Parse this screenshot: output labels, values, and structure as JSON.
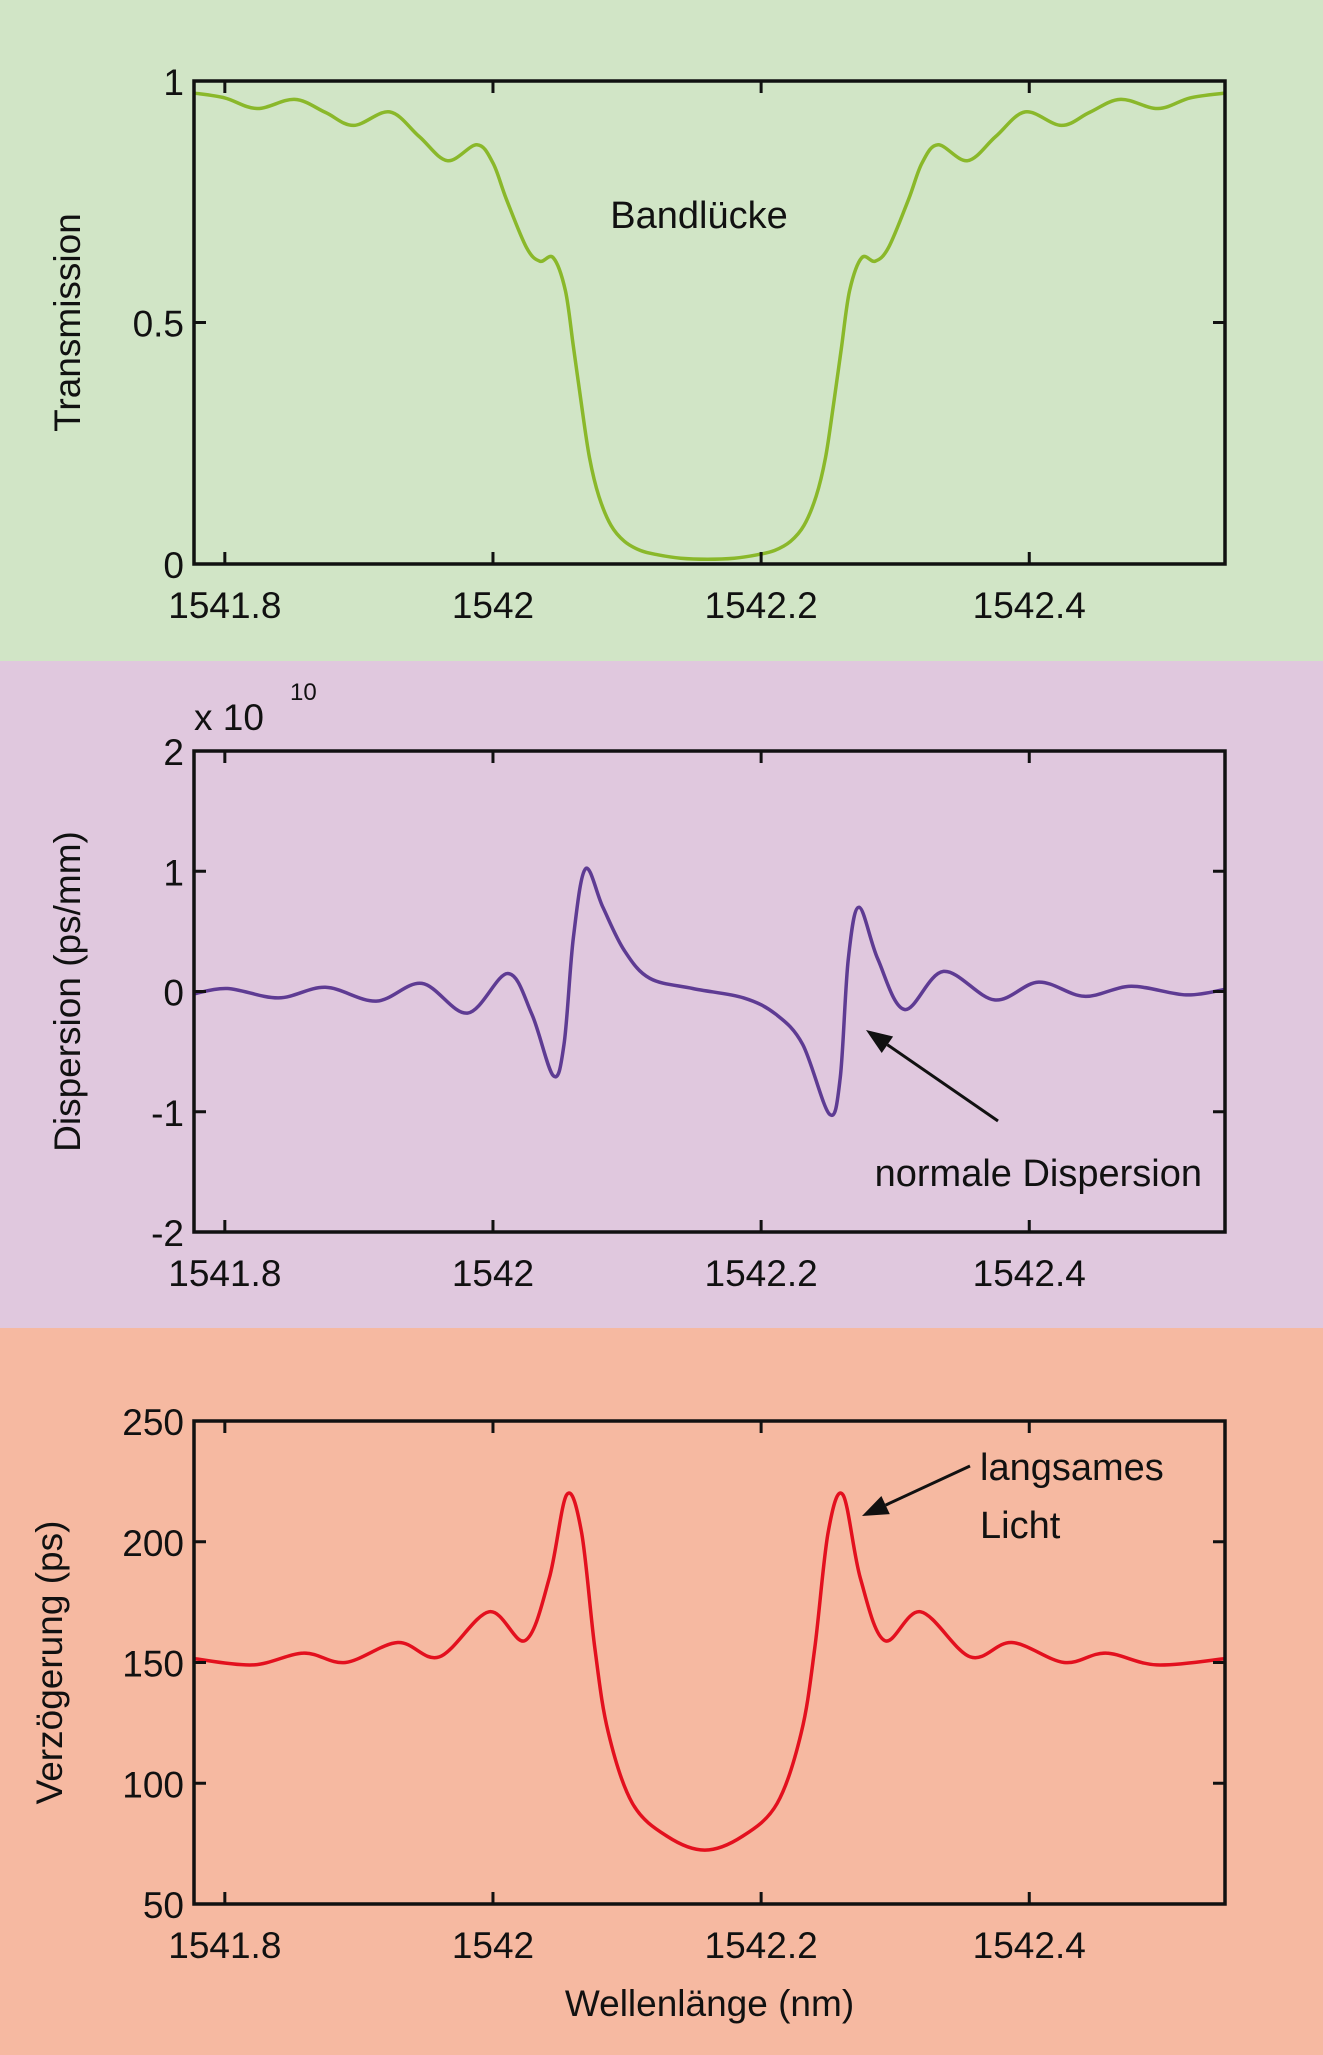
{
  "colors": {
    "transmission_bg": "#d1e5c6",
    "dispersion_bg": "#e0c8de",
    "delay_bg": "#f6b9a1",
    "transmission_line": "#8ab82a",
    "dispersion_line": "#5e3b93",
    "delay_line": "#e3101e",
    "axis": "#111111"
  },
  "chart_data": [
    {
      "type": "line",
      "ylabel": "Transmission",
      "xlabel": "",
      "xlim": [
        1541.777,
        1542.546
      ],
      "ylim": [
        0,
        1
      ],
      "xticks": [
        1541.8,
        1542.0,
        1542.2,
        1542.4
      ],
      "xtick_labels": [
        "1541.8",
        "1542",
        "1542.2",
        "1542.4"
      ],
      "yticks": [
        0,
        0.5,
        1
      ],
      "ytick_labels": [
        "0",
        "0.5",
        "1"
      ],
      "annotations": [
        {
          "text": "Bandlücke"
        }
      ],
      "x": [
        1541.777,
        1541.8,
        1541.824,
        1541.852,
        1541.875,
        1541.896,
        1541.923,
        1541.945,
        1541.966,
        1541.988,
        1542.0,
        1542.01,
        1542.025,
        1542.035,
        1542.045,
        1542.054,
        1542.06,
        1542.066,
        1542.072,
        1542.079,
        1542.088,
        1542.098,
        1542.11,
        1542.123,
        1542.14,
        1542.16,
        1542.18,
        1542.197,
        1542.21,
        1542.222,
        1542.232,
        1542.241,
        1542.248,
        1542.254,
        1542.26,
        1542.266,
        1542.275,
        1542.285,
        1542.295,
        1542.31,
        1542.32,
        1542.332,
        1542.354,
        1542.375,
        1542.397,
        1542.424,
        1542.445,
        1542.468,
        1542.496,
        1542.52,
        1542.546
      ],
      "y": [
        0.975,
        0.965,
        0.943,
        0.962,
        0.935,
        0.908,
        0.936,
        0.885,
        0.835,
        0.868,
        0.83,
        0.755,
        0.655,
        0.627,
        0.634,
        0.566,
        0.45,
        0.33,
        0.22,
        0.14,
        0.08,
        0.047,
        0.028,
        0.019,
        0.012,
        0.01,
        0.012,
        0.019,
        0.028,
        0.047,
        0.08,
        0.14,
        0.22,
        0.33,
        0.45,
        0.566,
        0.634,
        0.627,
        0.655,
        0.755,
        0.83,
        0.868,
        0.835,
        0.885,
        0.936,
        0.908,
        0.935,
        0.962,
        0.943,
        0.965,
        0.975
      ]
    },
    {
      "type": "line",
      "ylabel": "Dispersion (ps/mm)",
      "xlabel": "",
      "y_multiplier": "x 10",
      "y_multiplier_exp": "10",
      "xlim": [
        1541.777,
        1542.546
      ],
      "ylim": [
        -2,
        2
      ],
      "xticks": [
        1541.8,
        1542.0,
        1542.2,
        1542.4
      ],
      "xtick_labels": [
        "1541.8",
        "1542",
        "1542.2",
        "1542.4"
      ],
      "yticks": [
        -2,
        -1,
        0,
        1,
        2
      ],
      "ytick_labels": [
        "-2",
        "-1",
        "0",
        "1",
        "2"
      ],
      "annotations": [
        {
          "text": "normale Dispersion",
          "points_to": [
            1542.268,
            -0.4
          ]
        }
      ],
      "x": [
        1541.777,
        1541.802,
        1541.84,
        1541.875,
        1541.913,
        1541.947,
        1541.981,
        1542.011,
        1542.029,
        1542.045,
        1542.053,
        1542.06,
        1542.069,
        1542.082,
        1542.098,
        1542.117,
        1542.149,
        1542.187,
        1542.211,
        1542.231,
        1542.251,
        1542.259,
        1542.265,
        1542.273,
        1542.287,
        1542.307,
        1542.336,
        1542.374,
        1542.407,
        1542.441,
        1542.476,
        1542.517,
        1542.546
      ],
      "y": [
        -0.02,
        0.025,
        -0.053,
        0.035,
        -0.08,
        0.067,
        -0.18,
        0.15,
        -0.19,
        -0.7,
        -0.44,
        0.45,
        1.02,
        0.7,
        0.34,
        0.11,
        0.025,
        -0.053,
        -0.19,
        -0.44,
        -1.02,
        -0.72,
        0.27,
        0.7,
        0.27,
        -0.15,
        0.167,
        -0.07,
        0.078,
        -0.04,
        0.043,
        -0.028,
        0.018
      ]
    },
    {
      "type": "line",
      "ylabel": "Verzögerung (ps)",
      "xlabel": "Wellenlänge (nm)",
      "xlim": [
        1541.777,
        1542.546
      ],
      "ylim": [
        50,
        250
      ],
      "xticks": [
        1541.8,
        1542.0,
        1542.2,
        1542.4
      ],
      "xtick_labels": [
        "1541.8",
        "1542",
        "1542.2",
        "1542.4"
      ],
      "yticks": [
        50,
        100,
        150,
        200,
        250
      ],
      "ytick_labels": [
        "50",
        "100",
        "150",
        "200",
        "250"
      ],
      "annotations": [
        {
          "text": "langsames",
          "text2": "Licht",
          "points_to": [
            1542.272,
            205
          ]
        }
      ],
      "x": [
        1541.777,
        1541.821,
        1541.859,
        1541.89,
        1541.929,
        1541.96,
        1541.997,
        1542.024,
        1542.042,
        1542.055,
        1542.066,
        1542.076,
        1542.086,
        1542.104,
        1542.13,
        1542.158,
        1542.186,
        1542.212,
        1542.23,
        1542.24,
        1542.25,
        1542.261,
        1542.274,
        1542.292,
        1542.319,
        1542.356,
        1542.387,
        1542.426,
        1542.457,
        1542.495,
        1542.546
      ],
      "y": [
        151.6,
        149.0,
        153.9,
        150.0,
        158.3,
        152.3,
        171.0,
        159.1,
        185,
        219.5,
        204,
        155.8,
        121,
        91.7,
        78,
        72.3,
        78,
        91.7,
        121,
        155.8,
        204,
        219.5,
        185,
        159.1,
        171.0,
        152.3,
        158.3,
        150.0,
        153.9,
        149.0,
        151.6
      ]
    }
  ]
}
